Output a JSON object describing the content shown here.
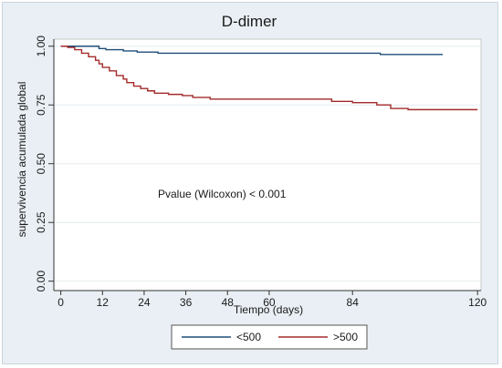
{
  "chart_data": {
    "type": "line",
    "title": "D-dimer",
    "xlabel": "Tiempo (days)",
    "ylabel": "supervivencia acumulada global",
    "x_ticks": [
      0,
      12,
      24,
      36,
      48,
      60,
      84,
      120
    ],
    "y_ticks": [
      "0.00",
      "0.25",
      "0.50",
      "0.75",
      "1.00"
    ],
    "xlim": [
      -2,
      121
    ],
    "ylim": [
      -0.04,
      1.03
    ],
    "grid": "horizontal",
    "legend_position": "bottom",
    "annotation": "Pvalue (Wilcoxon) < 0.001",
    "colors": {
      "s1": "#1f4e79",
      "s2": "#a32a2a",
      "plot_bg": "#ffffff",
      "outer_bg": "#e9eff4",
      "grid": "#e6ebef"
    },
    "series": [
      {
        "name": "<500",
        "step": true,
        "points": [
          [
            0,
            1.0
          ],
          [
            9,
            1.0
          ],
          [
            11,
            0.99
          ],
          [
            13,
            0.985
          ],
          [
            18,
            0.98
          ],
          [
            22,
            0.975
          ],
          [
            28,
            0.97
          ],
          [
            45,
            0.97
          ],
          [
            70,
            0.97
          ],
          [
            92,
            0.965
          ],
          [
            110,
            0.965
          ]
        ]
      },
      {
        "name": ">500",
        "step": true,
        "points": [
          [
            0,
            1.0
          ],
          [
            2,
            0.995
          ],
          [
            4,
            0.985
          ],
          [
            6,
            0.97
          ],
          [
            8,
            0.955
          ],
          [
            10,
            0.94
          ],
          [
            11,
            0.925
          ],
          [
            12,
            0.91
          ],
          [
            14,
            0.895
          ],
          [
            16,
            0.875
          ],
          [
            18,
            0.86
          ],
          [
            19,
            0.845
          ],
          [
            21,
            0.83
          ],
          [
            23,
            0.82
          ],
          [
            25,
            0.81
          ],
          [
            27,
            0.8
          ],
          [
            31,
            0.795
          ],
          [
            35,
            0.79
          ],
          [
            38,
            0.782
          ],
          [
            43,
            0.775
          ],
          [
            48,
            0.775
          ],
          [
            55,
            0.775
          ],
          [
            60,
            0.775
          ],
          [
            75,
            0.775
          ],
          [
            78,
            0.765
          ],
          [
            84,
            0.76
          ],
          [
            91,
            0.75
          ],
          [
            95,
            0.735
          ],
          [
            100,
            0.73
          ],
          [
            110,
            0.73
          ],
          [
            120,
            0.73
          ]
        ]
      }
    ]
  }
}
